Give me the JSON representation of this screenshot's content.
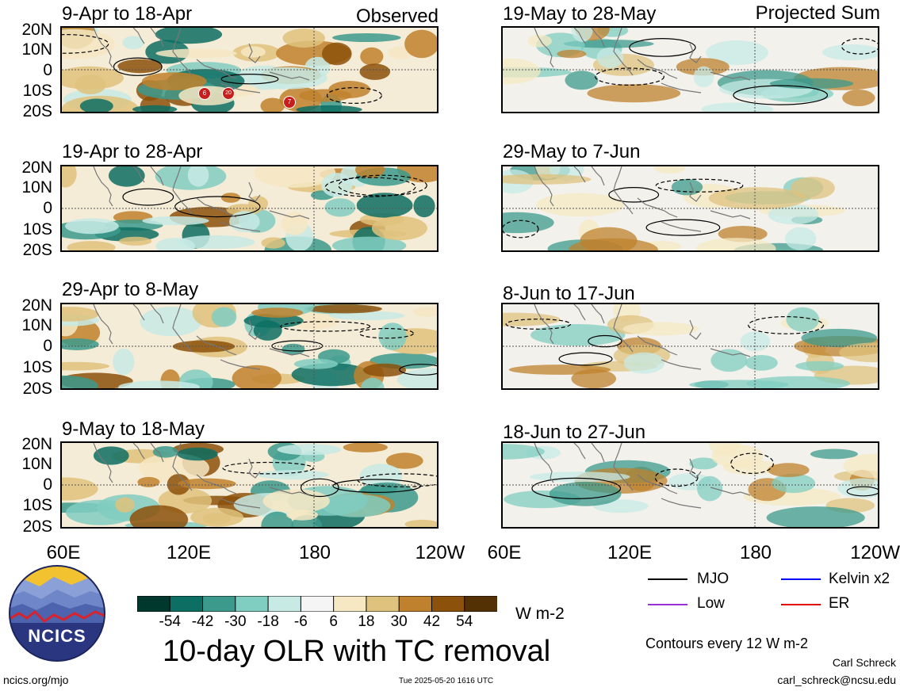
{
  "header": {
    "observed_label": "Observed",
    "projected_label": "Projected Sum"
  },
  "panels": {
    "left": [
      {
        "title": "9-Apr to 18-Apr"
      },
      {
        "title": "19-Apr to 28-Apr"
      },
      {
        "title": "29-Apr to 8-May"
      },
      {
        "title": "9-May to 18-May"
      }
    ],
    "right": [
      {
        "title": "19-May to 28-May"
      },
      {
        "title": "29-May to 7-Jun"
      },
      {
        "title": "8-Jun to 17-Jun"
      },
      {
        "title": "18-Jun to 27-Jun"
      }
    ]
  },
  "lat_labels": [
    "20N",
    "10N",
    "0",
    "10S",
    "20S"
  ],
  "lon_labels": [
    "60E",
    "120E",
    "180",
    "120W"
  ],
  "storm_markers": [
    "6",
    "20",
    "7"
  ],
  "colorbar": {
    "tick_labels": [
      "-54",
      "-42",
      "-30",
      "-18",
      "-6",
      "6",
      "18",
      "30",
      "42",
      "54"
    ],
    "units": "W m-2",
    "colors": [
      "#00382e",
      "#0d6f63",
      "#3c9a8c",
      "#80cdc1",
      "#c7eae5",
      "#f5f5f5",
      "#f6e8c3",
      "#dfc27d",
      "#bf812d",
      "#8c510a",
      "#543005"
    ]
  },
  "title": "10-day OLR with TC removal",
  "legend": {
    "items": [
      {
        "label": "MJO",
        "color": "#000000"
      },
      {
        "label": "Kelvin x2",
        "color": "#0000ff"
      },
      {
        "label": "Low",
        "color": "#9b30d9"
      },
      {
        "label": "ER",
        "color": "#e00000"
      }
    ],
    "contour_note": "Contours every 12 W m-2"
  },
  "credits": {
    "author": "Carl Schreck",
    "email": "carl_schreck@ncsu.edu",
    "url": "ncics.org/mjo",
    "timestamp": "Tue 2025-05-20 1616 UTC",
    "logo_text": "NCICS"
  }
}
